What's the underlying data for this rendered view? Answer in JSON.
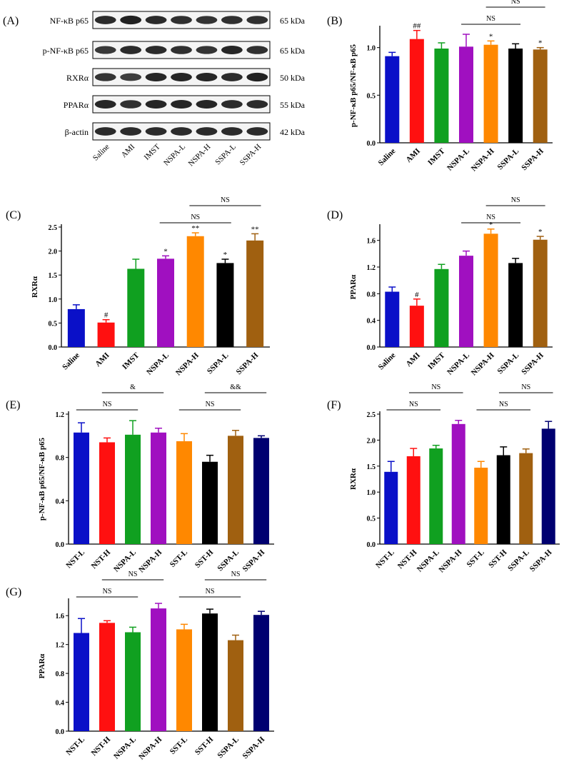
{
  "panels": {
    "A": "(A)",
    "B": "(B)",
    "C": "(C)",
    "D": "(D)",
    "E": "(E)",
    "F": "(F)",
    "G": "(G)"
  },
  "blot": {
    "lanes": [
      "Saline",
      "AMI",
      "IMST",
      "NSPA-L",
      "NSPA-H",
      "SSPA-L",
      "SSPA-H"
    ],
    "rows": [
      {
        "label": "NF-κB p65",
        "kda": "65 kDa",
        "intensity": [
          0.85,
          0.95,
          0.85,
          0.8,
          0.75,
          0.8,
          0.8
        ]
      },
      {
        "label": "p-NF-κB p65",
        "kda": "65 kDa",
        "intensity": [
          0.7,
          0.85,
          0.85,
          0.8,
          0.75,
          0.9,
          0.8
        ]
      },
      {
        "label": "RXRα",
        "kda": "50 kDa",
        "intensity": [
          0.75,
          0.65,
          0.9,
          0.9,
          0.9,
          0.85,
          0.95
        ]
      },
      {
        "label": "PPARα",
        "kda": "55 kDa",
        "intensity": [
          0.9,
          0.8,
          0.9,
          0.9,
          0.9,
          0.85,
          0.85
        ]
      },
      {
        "label": "β-actin",
        "kda": "42 kDa",
        "intensity": [
          0.85,
          0.85,
          0.85,
          0.85,
          0.85,
          0.85,
          0.85
        ]
      }
    ]
  },
  "chart_data": [
    {
      "id": "B",
      "type": "bar",
      "ylabel": "p-NF-κB p65/NF-κB p65",
      "categories": [
        "Saline",
        "AMI",
        "IMST",
        "NSPA-L",
        "NSPA-H",
        "SSPA-L",
        "SSPA-H"
      ],
      "values": [
        0.91,
        1.09,
        0.99,
        1.01,
        1.03,
        0.99,
        0.98
      ],
      "errors": [
        0.04,
        0.09,
        0.06,
        0.13,
        0.04,
        0.05,
        0.02
      ],
      "ylim": [
        0,
        1.2
      ],
      "ticks": [
        "0.0",
        "0.5",
        "1.0"
      ],
      "tick_values": [
        0,
        0.5,
        1.0
      ],
      "colors": [
        "#0a10c8",
        "#ff1010",
        "#10a020",
        "#a010c0",
        "#ff8800",
        "#000000",
        "#a06010"
      ],
      "annotations": [
        "",
        "##",
        "",
        "",
        "*",
        "",
        "*"
      ],
      "brackets": [
        {
          "from": 3,
          "to": 5,
          "label": "NS",
          "level": 0
        },
        {
          "from": 4,
          "to": 6,
          "label": "NS",
          "level": 1
        }
      ]
    },
    {
      "id": "C",
      "type": "bar",
      "ylabel": "RXRα",
      "categories": [
        "Saline",
        "AMI",
        "IMST",
        "NSPA-L",
        "NSPA-H",
        "SSPA-L",
        "SSPA-H"
      ],
      "values": [
        0.79,
        0.51,
        1.63,
        1.84,
        2.31,
        1.75,
        2.22
      ],
      "errors": [
        0.09,
        0.06,
        0.2,
        0.06,
        0.07,
        0.08,
        0.14
      ],
      "ylim": [
        0,
        2.5
      ],
      "ticks": [
        "0.0",
        "0.5",
        "1.0",
        "1.5",
        "2.0",
        "2.5"
      ],
      "tick_values": [
        0,
        0.5,
        1.0,
        1.5,
        2.0,
        2.5
      ],
      "colors": [
        "#0a10c8",
        "#ff1010",
        "#10a020",
        "#a010c0",
        "#ff8800",
        "#000000",
        "#a06010"
      ],
      "annotations": [
        "",
        "#",
        "",
        "*",
        "**",
        "*",
        "**"
      ],
      "brackets": [
        {
          "from": 3,
          "to": 5,
          "label": "NS",
          "level": 0
        },
        {
          "from": 4,
          "to": 6,
          "label": "NS",
          "level": 1
        }
      ]
    },
    {
      "id": "D",
      "type": "bar",
      "ylabel": "PPARα",
      "categories": [
        "Saline",
        "AMI",
        "IMST",
        "NSPA-L",
        "NSPA-H",
        "SSPA-L",
        "SSPA-H"
      ],
      "values": [
        0.83,
        0.62,
        1.17,
        1.37,
        1.7,
        1.26,
        1.61
      ],
      "errors": [
        0.07,
        0.1,
        0.07,
        0.07,
        0.07,
        0.07,
        0.05
      ],
      "ylim": [
        0,
        1.8
      ],
      "ticks": [
        "0.0",
        "0.4",
        "0.8",
        "1.2",
        "1.6"
      ],
      "tick_values": [
        0,
        0.4,
        0.8,
        1.2,
        1.6
      ],
      "colors": [
        "#0a10c8",
        "#ff1010",
        "#10a020",
        "#a010c0",
        "#ff8800",
        "#000000",
        "#a06010"
      ],
      "annotations": [
        "",
        "#",
        "",
        "",
        "*",
        "",
        "*"
      ],
      "brackets": [
        {
          "from": 3,
          "to": 5,
          "label": "NS",
          "level": 0
        },
        {
          "from": 4,
          "to": 6,
          "label": "NS",
          "level": 1
        }
      ]
    },
    {
      "id": "E",
      "type": "bar",
      "ylabel": "p-NF-κB p65/NF-κB p65",
      "categories": [
        "NST-L",
        "NST-H",
        "NSPA-L",
        "NSPA-H",
        "SST-L",
        "SST-H",
        "SSPA-L",
        "SSPA-H"
      ],
      "values": [
        1.03,
        0.94,
        1.01,
        1.03,
        0.95,
        0.76,
        1.0,
        0.98
      ],
      "errors": [
        0.09,
        0.04,
        0.13,
        0.04,
        0.07,
        0.06,
        0.05,
        0.02
      ],
      "ylim": [
        0,
        1.2
      ],
      "ticks": [
        "0.0",
        "0.4",
        "0.8",
        "1.2"
      ],
      "tick_values": [
        0,
        0.4,
        0.8,
        1.2
      ],
      "colors": [
        "#0a10c8",
        "#ff1010",
        "#10a020",
        "#a010c0",
        "#ff8800",
        "#000000",
        "#a06010",
        "#000070"
      ],
      "annotations": [
        "",
        "",
        "",
        "",
        "",
        "",
        "",
        ""
      ],
      "brackets": [
        {
          "from": 0,
          "to": 2,
          "label": "NS",
          "level": 0
        },
        {
          "from": 1,
          "to": 3,
          "label": "&",
          "level": 1
        },
        {
          "from": 4,
          "to": 6,
          "label": "NS",
          "level": 0
        },
        {
          "from": 5,
          "to": 7,
          "label": "&&",
          "level": 1
        }
      ]
    },
    {
      "id": "F",
      "type": "bar",
      "ylabel": "RXRα",
      "categories": [
        "NST-L",
        "NST-H",
        "NSPA-L",
        "NSPA-H",
        "SST-L",
        "SST-H",
        "SSPA-L",
        "SSPA-H"
      ],
      "values": [
        1.39,
        1.69,
        1.84,
        2.31,
        1.47,
        1.71,
        1.75,
        2.22
      ],
      "errors": [
        0.2,
        0.15,
        0.06,
        0.07,
        0.12,
        0.16,
        0.08,
        0.14
      ],
      "ylim": [
        0,
        2.5
      ],
      "ticks": [
        "0.0",
        "0.5",
        "1.0",
        "1.5",
        "2.0",
        "2.5"
      ],
      "tick_values": [
        0,
        0.5,
        1.0,
        1.5,
        2.0,
        2.5
      ],
      "colors": [
        "#0a10c8",
        "#ff1010",
        "#10a020",
        "#a010c0",
        "#ff8800",
        "#000000",
        "#a06010",
        "#000070"
      ],
      "annotations": [
        "",
        "",
        "",
        "",
        "",
        "",
        "",
        ""
      ],
      "brackets": [
        {
          "from": 0,
          "to": 2,
          "label": "NS",
          "level": 0
        },
        {
          "from": 1,
          "to": 3,
          "label": "NS",
          "level": 1
        },
        {
          "from": 4,
          "to": 6,
          "label": "NS",
          "level": 0
        },
        {
          "from": 5,
          "to": 7,
          "label": "NS",
          "level": 1
        }
      ]
    },
    {
      "id": "G",
      "type": "bar",
      "ylabel": "PPARα",
      "categories": [
        "NST-L",
        "NST-H",
        "NSPA-L",
        "NSPA-H",
        "SST-L",
        "SST-H",
        "SSPA-L",
        "SSPA-H"
      ],
      "values": [
        1.36,
        1.5,
        1.37,
        1.7,
        1.41,
        1.63,
        1.26,
        1.61
      ],
      "errors": [
        0.2,
        0.03,
        0.07,
        0.07,
        0.07,
        0.06,
        0.07,
        0.05
      ],
      "ylim": [
        0,
        1.8
      ],
      "ticks": [
        "0.0",
        "0.4",
        "0.8",
        "1.2",
        "1.6"
      ],
      "tick_values": [
        0,
        0.4,
        0.8,
        1.2,
        1.6
      ],
      "colors": [
        "#0a10c8",
        "#ff1010",
        "#10a020",
        "#a010c0",
        "#ff8800",
        "#000000",
        "#a06010",
        "#000070"
      ],
      "annotations": [
        "",
        "",
        "",
        "",
        "",
        "",
        "",
        ""
      ],
      "brackets": [
        {
          "from": 0,
          "to": 2,
          "label": "NS",
          "level": 0
        },
        {
          "from": 1,
          "to": 3,
          "label": "NS",
          "level": 1
        },
        {
          "from": 4,
          "to": 6,
          "label": "NS",
          "level": 0
        },
        {
          "from": 5,
          "to": 7,
          "label": "NS",
          "level": 1
        }
      ]
    }
  ]
}
